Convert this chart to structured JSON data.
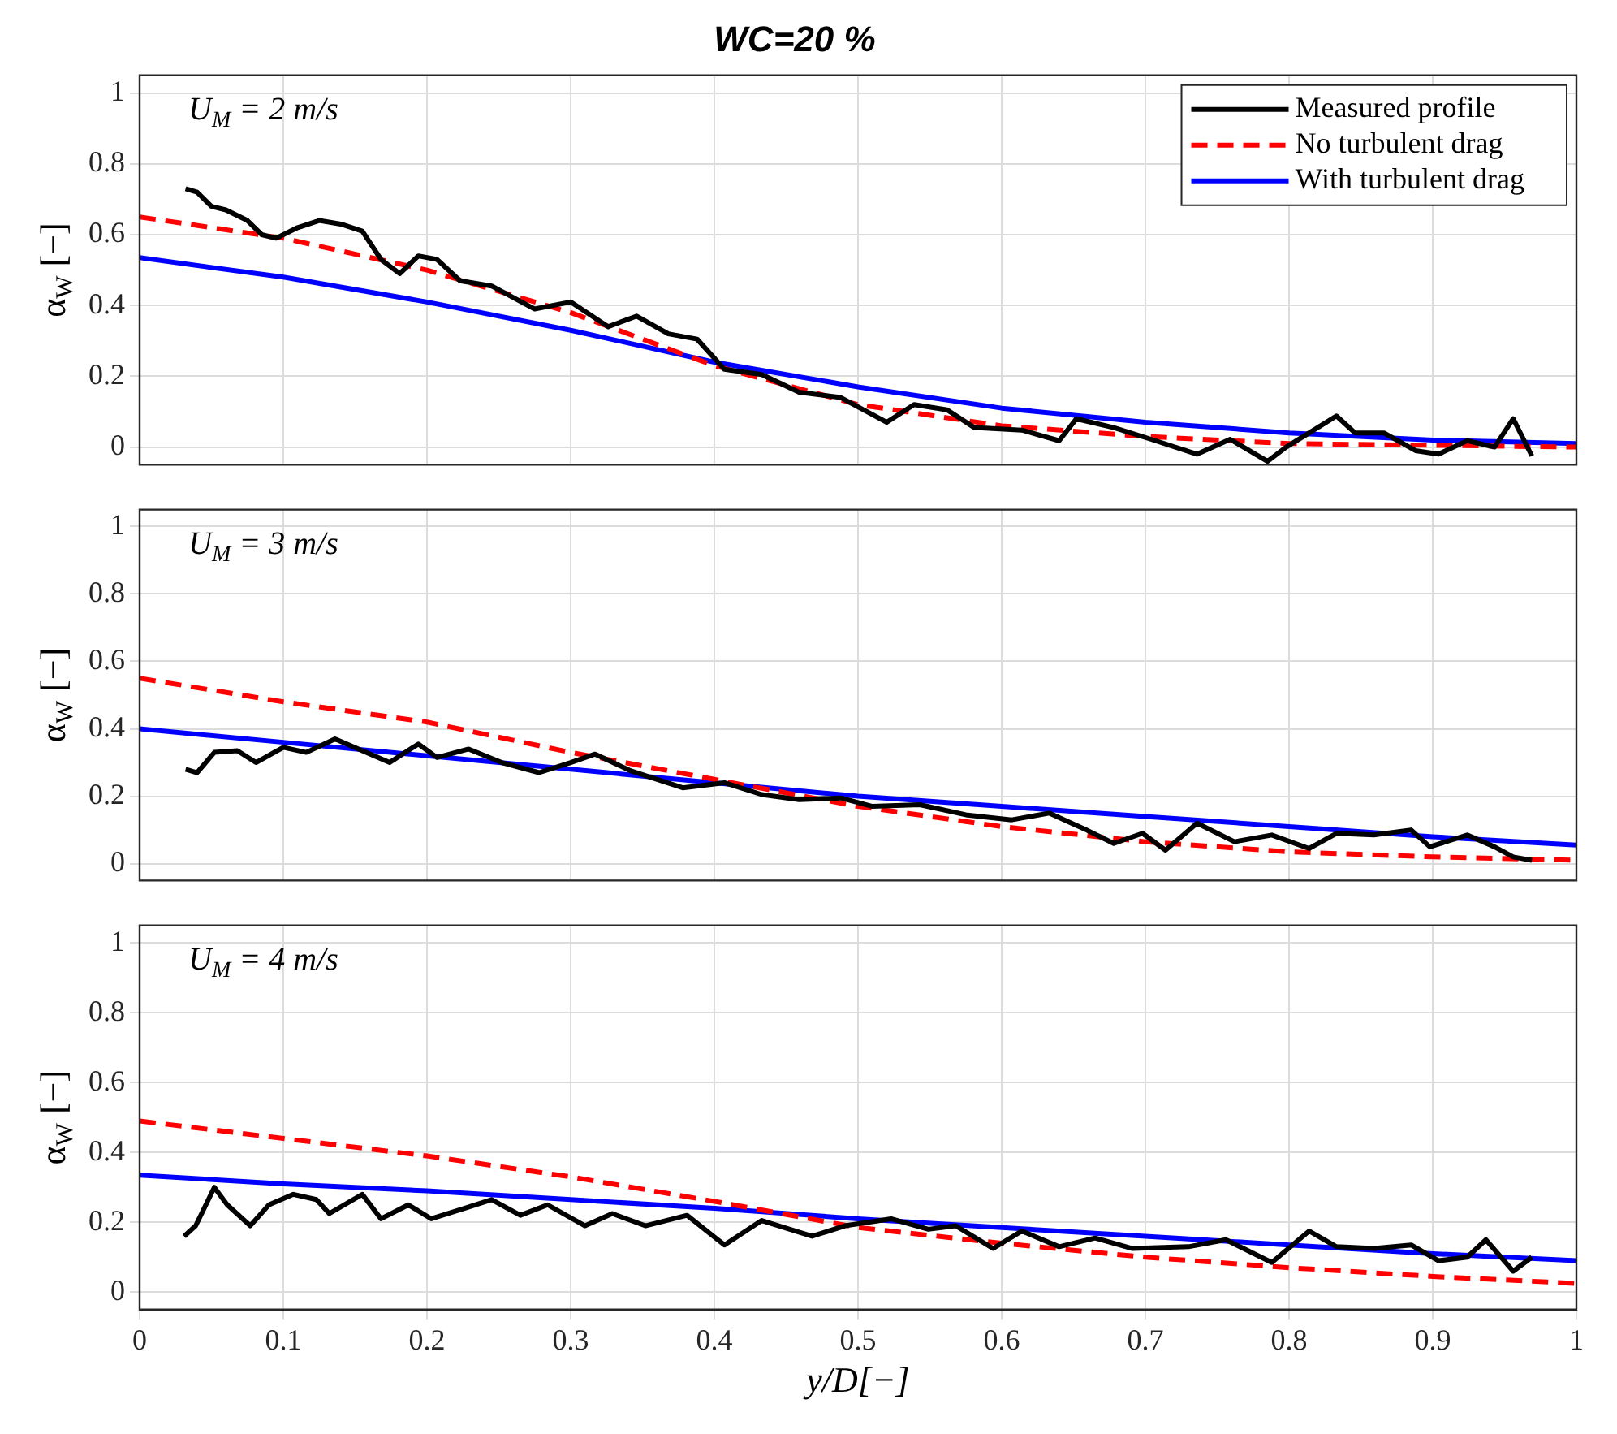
{
  "chart_data": [
    {
      "type": "line",
      "title": "WC=20 %",
      "ylabel": "α$_{W}$ [−]",
      "annotations": [
        "U$_{M}$ = 2 m/s"
      ],
      "xlim": [
        0,
        1
      ],
      "xticks": [
        0,
        0.1,
        0.2,
        0.3,
        0.4,
        0.5,
        0.6,
        0.7,
        0.8,
        0.9,
        1
      ],
      "ylim": [
        -0.05,
        1.05
      ],
      "yticks": [
        0,
        0.2,
        0.4,
        0.6,
        0.8,
        1
      ],
      "tick_labels": "y",
      "grid": true,
      "legend": "top right",
      "marker": "none",
      "series": [
        {
          "name": "Measured profile",
          "color": "#000000",
          "line_style": "solid",
          "x": [
            0.032,
            0.04,
            0.05,
            0.06,
            0.075,
            0.085,
            0.095,
            0.11,
            0.125,
            0.14,
            0.155,
            0.168,
            0.181,
            0.194,
            0.207,
            0.223,
            0.245,
            0.275,
            0.3,
            0.326,
            0.346,
            0.368,
            0.388,
            0.407,
            0.433,
            0.459,
            0.488,
            0.504,
            0.52,
            0.539,
            0.562,
            0.581,
            0.614,
            0.64,
            0.652,
            0.678,
            0.704,
            0.736,
            0.759,
            0.785,
            0.798,
            0.814,
            0.833,
            0.846,
            0.866,
            0.888,
            0.904,
            0.924,
            0.943,
            0.956,
            0.969
          ],
          "values": [
            0.73,
            0.72,
            0.68,
            0.67,
            0.64,
            0.6,
            0.59,
            0.62,
            0.64,
            0.63,
            0.61,
            0.53,
            0.49,
            0.54,
            0.53,
            0.47,
            0.455,
            0.39,
            0.41,
            0.34,
            0.37,
            0.32,
            0.305,
            0.22,
            0.205,
            0.155,
            0.14,
            0.105,
            0.07,
            0.12,
            0.105,
            0.055,
            0.048,
            0.018,
            0.08,
            0.055,
            0.022,
            -0.02,
            0.022,
            -0.04,
            0,
            0.04,
            0.088,
            0.04,
            0.04,
            -0.01,
            -0.02,
            0.018,
            0,
            0.08,
            -0.025
          ]
        },
        {
          "name": "No turbulent drag",
          "color": "#ff0000",
          "line_style": "dashed",
          "x": [
            0,
            0.1,
            0.2,
            0.3,
            0.4,
            0.5,
            0.6,
            0.7,
            0.8,
            0.9,
            1
          ],
          "values": [
            0.65,
            0.59,
            0.5,
            0.38,
            0.23,
            0.12,
            0.06,
            0.03,
            0.01,
            0.005,
            0
          ]
        },
        {
          "name": "With turbulent drag",
          "color": "#0000ff",
          "line_style": "solid",
          "x": [
            0,
            0.1,
            0.2,
            0.3,
            0.4,
            0.5,
            0.6,
            0.7,
            0.8,
            0.9,
            1
          ],
          "values": [
            0.535,
            0.48,
            0.41,
            0.33,
            0.24,
            0.17,
            0.11,
            0.07,
            0.04,
            0.02,
            0.01
          ]
        }
      ]
    },
    {
      "type": "line",
      "ylabel": "α$_{W}$ [−]",
      "annotations": [
        "U$_{M}$ = 3 m/s"
      ],
      "xlim": [
        0,
        1
      ],
      "xticks": [
        0,
        0.1,
        0.2,
        0.3,
        0.4,
        0.5,
        0.6,
        0.7,
        0.8,
        0.9,
        1
      ],
      "ylim": [
        -0.05,
        1.05
      ],
      "yticks": [
        0,
        0.2,
        0.4,
        0.6,
        0.8,
        1
      ],
      "tick_labels": "y",
      "grid": true,
      "marker": "none",
      "series": [
        {
          "color": "#000000",
          "line_style": "solid",
          "x": [
            0.032,
            0.04,
            0.052,
            0.068,
            0.081,
            0.1,
            0.116,
            0.136,
            0.155,
            0.174,
            0.194,
            0.207,
            0.229,
            0.252,
            0.278,
            0.3,
            0.317,
            0.342,
            0.378,
            0.407,
            0.433,
            0.459,
            0.488,
            0.51,
            0.543,
            0.575,
            0.607,
            0.633,
            0.659,
            0.678,
            0.698,
            0.714,
            0.736,
            0.762,
            0.788,
            0.814,
            0.833,
            0.859,
            0.885,
            0.898,
            0.924,
            0.943,
            0.956,
            0.969
          ],
          "values": [
            0.28,
            0.27,
            0.33,
            0.335,
            0.3,
            0.345,
            0.33,
            0.37,
            0.335,
            0.3,
            0.355,
            0.315,
            0.34,
            0.3,
            0.27,
            0.3,
            0.325,
            0.275,
            0.225,
            0.24,
            0.205,
            0.19,
            0.195,
            0.17,
            0.175,
            0.145,
            0.13,
            0.15,
            0.1,
            0.06,
            0.09,
            0.04,
            0.12,
            0.065,
            0.085,
            0.045,
            0.09,
            0.085,
            0.1,
            0.05,
            0.085,
            0.05,
            0.02,
            0.01
          ]
        },
        {
          "color": "#ff0000",
          "line_style": "dashed",
          "x": [
            0,
            0.1,
            0.2,
            0.3,
            0.4,
            0.5,
            0.6,
            0.7,
            0.8,
            0.9,
            1
          ],
          "values": [
            0.55,
            0.48,
            0.42,
            0.33,
            0.25,
            0.17,
            0.11,
            0.065,
            0.035,
            0.02,
            0.01
          ]
        },
        {
          "color": "#0000ff",
          "line_style": "solid",
          "x": [
            0,
            0.1,
            0.2,
            0.3,
            0.4,
            0.5,
            0.6,
            0.7,
            0.8,
            0.9,
            1
          ],
          "values": [
            0.4,
            0.36,
            0.32,
            0.28,
            0.24,
            0.2,
            0.17,
            0.14,
            0.11,
            0.08,
            0.055
          ]
        }
      ]
    },
    {
      "type": "line",
      "xlabel": "y/D[−]",
      "ylabel": "α$_{W}$ [−]",
      "annotations": [
        "U$_{M}$ = 4 m/s"
      ],
      "xlim": [
        0,
        1
      ],
      "xticks": [
        0,
        0.1,
        0.2,
        0.3,
        0.4,
        0.5,
        0.6,
        0.7,
        0.8,
        0.9,
        1
      ],
      "ylim": [
        -0.05,
        1.05
      ],
      "yticks": [
        0,
        0.2,
        0.4,
        0.6,
        0.8,
        1
      ],
      "grid": true,
      "marker": "none",
      "series": [
        {
          "color": "#000000",
          "line_style": "solid",
          "x": [
            0.031,
            0.039,
            0.052,
            0.061,
            0.077,
            0.09,
            0.107,
            0.123,
            0.132,
            0.155,
            0.168,
            0.187,
            0.203,
            0.226,
            0.245,
            0.265,
            0.284,
            0.31,
            0.329,
            0.352,
            0.381,
            0.407,
            0.433,
            0.468,
            0.491,
            0.523,
            0.549,
            0.568,
            0.594,
            0.614,
            0.64,
            0.665,
            0.691,
            0.73,
            0.756,
            0.788,
            0.814,
            0.833,
            0.859,
            0.885,
            0.904,
            0.924,
            0.937,
            0.956,
            0.969
          ],
          "values": [
            0.16,
            0.19,
            0.3,
            0.25,
            0.19,
            0.25,
            0.28,
            0.265,
            0.225,
            0.28,
            0.21,
            0.25,
            0.21,
            0.24,
            0.265,
            0.22,
            0.25,
            0.19,
            0.225,
            0.19,
            0.22,
            0.135,
            0.205,
            0.16,
            0.19,
            0.21,
            0.18,
            0.19,
            0.125,
            0.175,
            0.13,
            0.155,
            0.125,
            0.13,
            0.15,
            0.085,
            0.175,
            0.13,
            0.125,
            0.135,
            0.09,
            0.1,
            0.15,
            0.06,
            0.1
          ]
        },
        {
          "color": "#ff0000",
          "line_style": "dashed",
          "x": [
            0,
            0.1,
            0.2,
            0.3,
            0.4,
            0.5,
            0.6,
            0.7,
            0.8,
            0.9,
            1
          ],
          "values": [
            0.49,
            0.44,
            0.39,
            0.33,
            0.26,
            0.185,
            0.14,
            0.1,
            0.07,
            0.045,
            0.025
          ]
        },
        {
          "color": "#0000ff",
          "line_style": "solid",
          "x": [
            0,
            0.1,
            0.2,
            0.3,
            0.4,
            0.5,
            0.6,
            0.7,
            0.8,
            0.9,
            1
          ],
          "values": [
            0.335,
            0.31,
            0.29,
            0.265,
            0.24,
            0.21,
            0.185,
            0.16,
            0.135,
            0.11,
            0.09
          ]
        }
      ]
    }
  ]
}
